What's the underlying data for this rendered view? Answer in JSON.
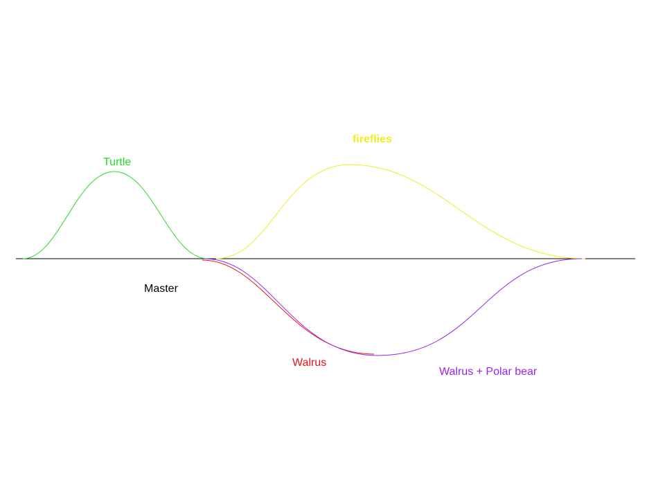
{
  "labels": {
    "turtle": "Turtle",
    "fireflies": "fireflies",
    "master": "Master",
    "walrus": "Walrus",
    "walrus_polar_bear": "Walrus + Polar bear"
  },
  "colors": {
    "turtle": "#22dd22",
    "fireflies": "#eeee22",
    "master": "#000000",
    "walrus": "#ee1111",
    "walrus_polar_bear": "#9922ee"
  }
}
